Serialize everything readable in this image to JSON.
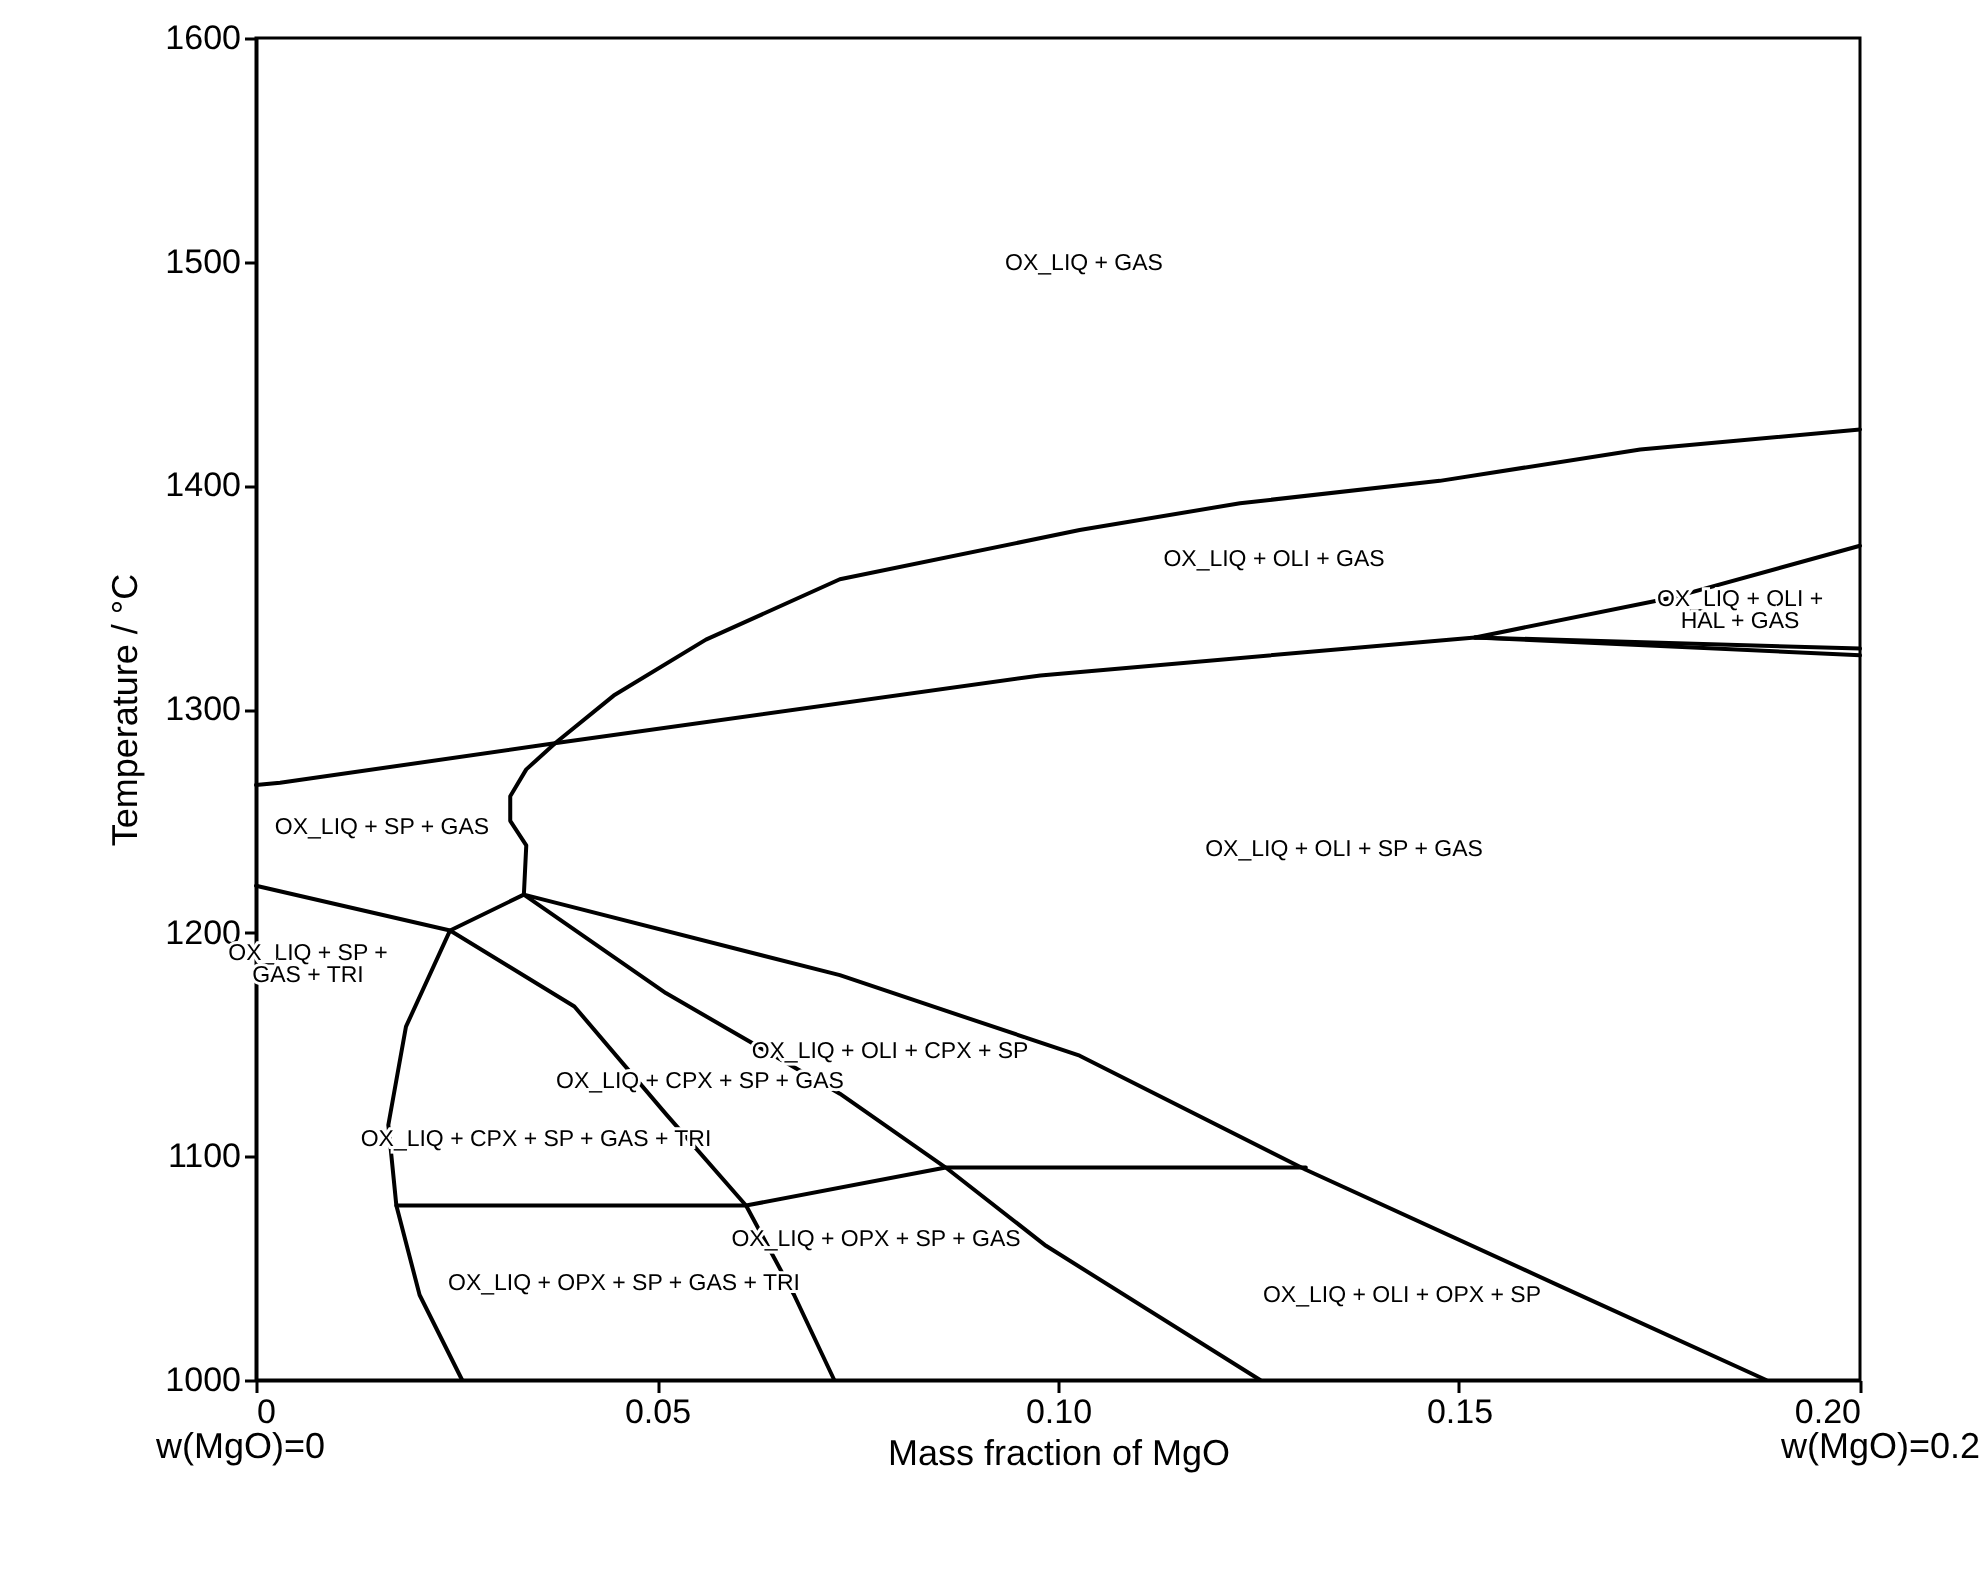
{
  "chart_data": {
    "type": "line",
    "xlabel": "Mass fraction of MgO",
    "ylabel": "Temperature / °C",
    "xlim": [
      0,
      0.2
    ],
    "ylim": [
      1000,
      1600
    ],
    "xticks": [
      0,
      {
        "value": 0.05,
        "label": "0.05"
      },
      {
        "value": 0.1,
        "label": "0.10"
      },
      {
        "value": 0.15,
        "label": "0.15"
      },
      {
        "value": 0.2,
        "label": "0.20"
      }
    ],
    "yticks": [
      1000,
      1100,
      1200,
      1300,
      1400,
      1500,
      1600
    ],
    "grid": false,
    "line_style": "solid",
    "series": [
      {
        "color": "#000000",
        "x": [
          0.0334,
          0.0337,
          0.0317,
          0.0317,
          0.0337,
          0.0374,
          0.0446,
          0.0561,
          0.0728,
          0.1027,
          0.1227,
          0.1476,
          0.1726,
          0.2
        ],
        "values": [
          1217,
          1239,
          1250,
          1261,
          1273,
          1285,
          1306,
          1331,
          1358,
          1380,
          1392,
          1402,
          1416,
          1425
        ]
      },
      {
        "color": "#000000",
        "x": [
          0,
          0.003,
          0.0379,
          0.0978,
          0.152,
          0.2
        ],
        "values": [
          1266,
          1267,
          1285,
          1315,
          1332,
          1327
        ]
      },
      {
        "color": "#000000",
        "x": [
          0.152,
          0.1768,
          0.2
        ],
        "values": [
          1332,
          1350,
          1373
        ]
      },
      {
        "color": "#000000",
        "x": [
          0.152,
          0.2
        ],
        "values": [
          1332,
          1324
        ]
      },
      {
        "color": "#000000",
        "x": [
          0,
          0.0242,
          0.0397,
          0.0511,
          0.0611,
          0.0671,
          0.0721
        ],
        "values": [
          1221,
          1201,
          1167,
          1119,
          1078,
          1038,
          1000
        ]
      },
      {
        "color": "#000000",
        "x": [
          0.0334,
          0.0242,
          0.0187,
          0.0165,
          0.0175,
          0.0204,
          0.0257
        ],
        "values": [
          1217,
          1201,
          1158,
          1114,
          1078,
          1038,
          1000
        ]
      },
      {
        "color": "#000000",
        "x": [
          0.0334,
          0.0511,
          0.0728,
          0.086,
          0.0985,
          0.1252
        ],
        "values": [
          1217,
          1173,
          1128,
          1095,
          1060,
          1000
        ]
      },
      {
        "color": "#000000",
        "x": [
          0.0334,
          0.0728,
          0.1027,
          0.1309,
          0.1626,
          0.1883
        ],
        "values": [
          1217,
          1181,
          1145,
          1094,
          1042,
          1000
        ]
      },
      {
        "color": "#000000",
        "x": [
          0.0175,
          0.0611,
          0.086,
          0.1309
        ],
        "values": [
          1078,
          1078,
          1095,
          1095
        ]
      }
    ],
    "annotations": [
      "OX_LIQ + GAS",
      "OX_LIQ + OLI + GAS",
      "OX_LIQ + OLI +\nHAL + GAS",
      "OX_LIQ + SP + GAS",
      "OX_LIQ + OLI + SP + GAS",
      "OX_LIQ + SP +\nGAS + TRI",
      "OX_LIQ + OLI + CPX + SP",
      "OX_LIQ + CPX + SP + GAS",
      "OX_LIQ + CPX + SP + GAS + TRI",
      "OX_LIQ + OPX + SP + GAS",
      "OX_LIQ + OPX + SP + GAS + TRI",
      "OX_LIQ + OLI + OPX + SP",
      "w(MgO)=0",
      "w(MgO)=0.2"
    ]
  }
}
